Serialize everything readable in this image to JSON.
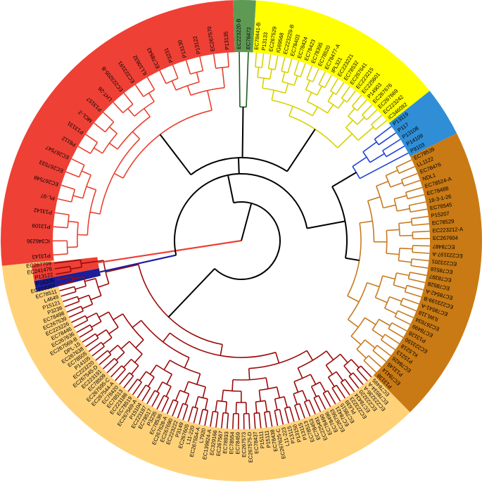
{
  "colors": {
    "red": "#ee4035",
    "red_branch": "#e8412e",
    "green": "#5f9a55",
    "green_branch": "#1e5a1e",
    "yellow": "#ffff00",
    "yellow_branch": "#d8d200",
    "blue": "#2f8ed6",
    "blue_branch": "#1f3fd8",
    "navy": "#1c1e9a",
    "brown": "#c97a14",
    "brown_branch": "#c87a20",
    "peach": "#ffd27a",
    "darkred_branch": "#9b0a0a",
    "backbone": "#000000"
  },
  "clades": [
    {
      "name": "red-clade",
      "color_key": "red",
      "branch_key": "red_branch",
      "leaves": [
        "P13143",
        "IC346236",
        "P13109",
        "P13142",
        "PL-97",
        "EC267548",
        "EC267533",
        "EC267547",
        "P8112",
        "P13131",
        "MCL-2",
        "P13157",
        "LHT-26",
        "EC223205-B",
        "EC223191",
        "ILL10632",
        "EC78543",
        "P3231",
        "P13130",
        "P13122",
        "EC267570",
        "P13135"
      ]
    },
    {
      "name": "green-clade",
      "color_key": "green",
      "branch_key": "green_branch",
      "leaves": [
        "EC223220-B",
        "EC78472"
      ]
    },
    {
      "name": "yellow-clade",
      "color_key": "yellow",
      "branch_key": "yellow_branch",
      "leaves": [
        "EC78441-B",
        "P13133",
        "EC267529",
        "IG69568",
        "EC223229-B",
        "EC78403",
        "EC78424",
        "EC78423",
        "EC78395",
        "EC78520",
        "EC78477-A",
        "IPL321",
        "EC223221",
        "EC78532",
        "EC267641",
        "EC223215",
        "EC225601",
        "P14903",
        "EC267676",
        "EC267669",
        "EC223242",
        "IC346092"
      ]
    },
    {
      "name": "blue-clade",
      "color_key": "blue",
      "branch_key": "blue_branch",
      "leaves": [
        "P13119",
        "P117",
        "P13108",
        "P14109",
        "P8103"
      ]
    },
    {
      "name": "brown-clade",
      "color_key": "brown",
      "branch_key": "brown_branch",
      "leaves": [
        "EC78539",
        "LL1122",
        "EC78476",
        "NDL1",
        "EC78524-A",
        "EC78488",
        "18-3-1-26",
        "EC78545",
        "P15207",
        "EC78529",
        "EC223212-A",
        "EC267604",
        "EC78487",
        "EC223197-A",
        "EC223201",
        "EC78518",
        "EC78397",
        "EC78528",
        "EC78542-A",
        "EC223199-B",
        "EC78541-A",
        "ILWL118",
        "EC267634",
        "EC78499",
        "P13128",
        "EC223150",
        "KLS218",
        "P15213",
        "EC78426",
        "P13145",
        "EC78414",
        "P13138"
      ]
    },
    {
      "name": "peach-clade",
      "color_key": "peach",
      "branch_key": "darkred_branch",
      "leaves": [
        "EC78495",
        "EC78534-A",
        "EC223236-A",
        "EC223220",
        "EC78434",
        "EC223223",
        "PL639",
        "EC78515",
        "EC78421",
        "EC267563",
        "EC78496",
        "EC78490",
        "EC225491",
        "EC78453",
        "EC78513",
        "P13115",
        "P13150",
        "P13115",
        "L11-223",
        "EC267625-C",
        "EC78438",
        "P15111",
        "P15111",
        "EC78437",
        "EC267575-D",
        "EC267573",
        "EC78459",
        "EC78554",
        "EC78933",
        "EC267567",
        "EC329166",
        "EC139824-A",
        "L7920",
        "EC267554-A",
        "L11-220",
        "EC267605",
        "P3149",
        "EC223222",
        "EC267690",
        "EC267628-A",
        "EC78536",
        "P3235",
        "EC78517",
        "EC223187",
        "P15104",
        "EC267569-A",
        "EC78519",
        "EC223188",
        "EC78513",
        "EC78420",
        "EC267544-A",
        "EC267595-C",
        "EC78509",
        "EC223191",
        "EC267545-D",
        "EC223220",
        "P14105",
        "EC78505",
        "EC267638",
        "DPL-15",
        "EC267569-B",
        "EC267636",
        "EC78446",
        "EC223226",
        "EC267539",
        "EC78498",
        "P3236",
        "P15121",
        "L4649",
        "EC78511",
        "EC223207",
        "P16205",
        "P13122",
        "EC241476",
        "EC267709"
      ]
    }
  ]
}
